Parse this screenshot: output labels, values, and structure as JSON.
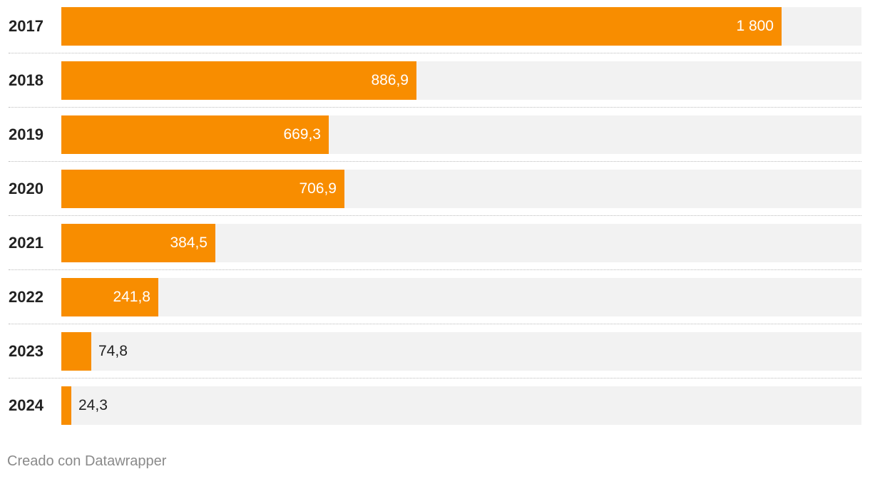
{
  "chart_data": {
    "type": "bar",
    "orientation": "horizontal",
    "categories": [
      "2017",
      "2018",
      "2019",
      "2020",
      "2021",
      "2022",
      "2023",
      "2024"
    ],
    "values": [
      1800,
      886.9,
      669.3,
      706.9,
      384.5,
      241.8,
      74.8,
      24.3
    ],
    "value_labels": [
      "1 800",
      "886,9",
      "669,3",
      "706,9",
      "384,5",
      "241,8",
      "74,8",
      "24,3"
    ],
    "xlim": [
      0,
      2000
    ],
    "bar_color": "#f88d00",
    "track_color": "#f2f2f2",
    "grid": false
  },
  "footer": {
    "credit": "Creado con Datawrapper"
  }
}
